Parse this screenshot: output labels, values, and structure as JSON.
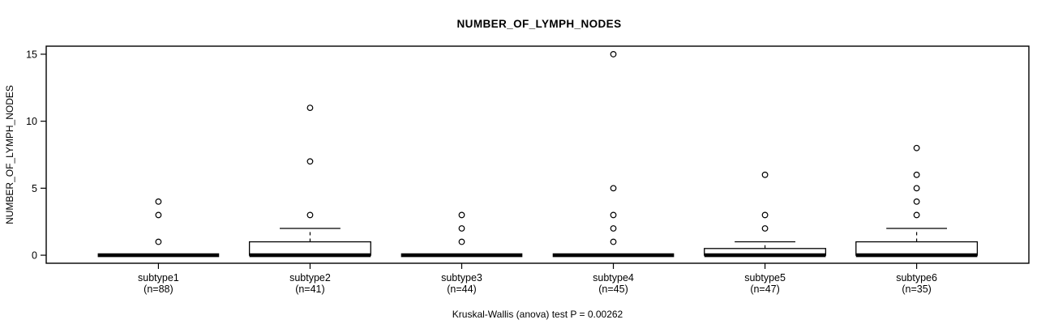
{
  "chart_data": {
    "type": "boxplot",
    "title": "NUMBER_OF_LYMPH_NODES",
    "ylabel": "NUMBER_OF_LYMPH_NODES",
    "footer": "Kruskal-Wallis (anova) test P = 0.00262",
    "ylim": [
      0,
      15
    ],
    "yticks": [
      0,
      5,
      10,
      15
    ],
    "grid": false,
    "colors": {
      "stroke": "#000000",
      "box_fill": "#ffffff",
      "background": "#ffffff"
    },
    "groups": [
      {
        "label": "subtype1",
        "n_label": "(n=88)",
        "n": 88,
        "q1": 0,
        "median": 0,
        "q3": 0,
        "whisker_low": 0,
        "whisker_high": 0,
        "outliers": [
          1,
          3,
          4
        ]
      },
      {
        "label": "subtype2",
        "n_label": "(n=41)",
        "n": 41,
        "q1": 0,
        "median": 0,
        "q3": 1,
        "whisker_low": 0,
        "whisker_high": 2,
        "outliers": [
          3,
          7,
          11
        ]
      },
      {
        "label": "subtype3",
        "n_label": "(n=44)",
        "n": 44,
        "q1": 0,
        "median": 0,
        "q3": 0,
        "whisker_low": 0,
        "whisker_high": 0,
        "outliers": [
          1,
          2,
          3
        ]
      },
      {
        "label": "subtype4",
        "n_label": "(n=45)",
        "n": 45,
        "q1": 0,
        "median": 0,
        "q3": 0,
        "whisker_low": 0,
        "whisker_high": 0,
        "outliers": [
          1,
          2,
          3,
          5,
          15
        ]
      },
      {
        "label": "subtype5",
        "n_label": "(n=47)",
        "n": 47,
        "q1": 0,
        "median": 0,
        "q3": 0.5,
        "whisker_low": 0,
        "whisker_high": 1,
        "outliers": [
          2,
          3,
          6
        ]
      },
      {
        "label": "subtype6",
        "n_label": "(n=35)",
        "n": 35,
        "q1": 0,
        "median": 0,
        "q3": 1,
        "whisker_low": 0,
        "whisker_high": 2,
        "outliers": [
          3,
          4,
          5,
          6,
          8
        ]
      }
    ]
  }
}
